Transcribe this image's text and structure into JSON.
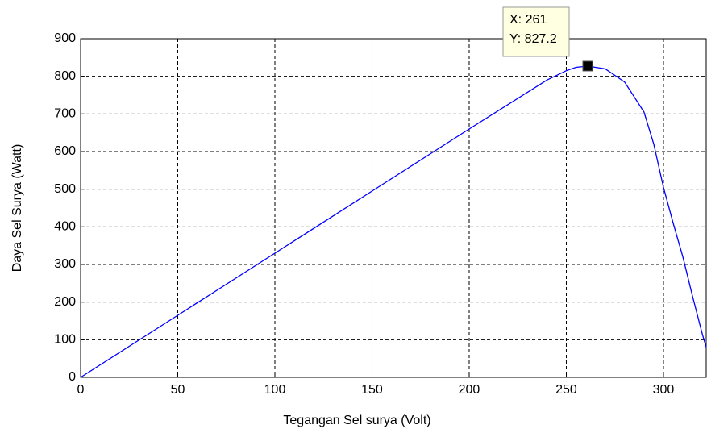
{
  "chart_data": {
    "type": "line",
    "x_label": "Tegangan Sel surya (Volt)",
    "y_label": "Daya Sel Surya (Watt)",
    "series": [
      {
        "color": "#0000ff",
        "x": [
          0,
          50,
          100,
          150,
          200,
          240,
          250,
          255,
          261,
          270,
          280,
          290,
          295,
          300,
          305,
          310,
          315,
          320,
          322
        ],
        "values": [
          0,
          165,
          330,
          495,
          660,
          790,
          815,
          824,
          827.2,
          820,
          785,
          705,
          620,
          505,
          410,
          320,
          215,
          115,
          80
        ]
      }
    ],
    "datatip": {
      "x": 261,
      "y": 827.2,
      "label_x": "X: 261",
      "label_y": "Y: 827.2"
    },
    "xlim": [
      0,
      322
    ],
    "ylim": [
      0,
      900
    ],
    "xticks": [
      0,
      50,
      100,
      150,
      200,
      250,
      300
    ],
    "yticks": [
      0,
      100,
      200,
      300,
      400,
      500,
      600,
      700,
      800,
      900
    ],
    "grid": true
  }
}
